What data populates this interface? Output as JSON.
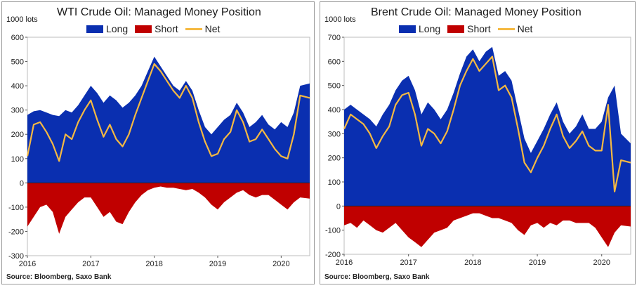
{
  "source_label": "Source: Bloomberg, Saxo Bank",
  "legend": {
    "long": "Long",
    "short": "Short",
    "net": "Net"
  },
  "colors": {
    "long": "#0a2fb0",
    "short": "#c00000",
    "net": "#f5b942"
  },
  "chart_data": [
    {
      "type": "area",
      "title": "WTI Crude Oil: Managed Money Position",
      "ylabel": "1000 lots",
      "xlabel": "",
      "ylim": [
        -300,
        600
      ],
      "yticks": [
        -300,
        -200,
        -100,
        0,
        100,
        200,
        300,
        400,
        500,
        600
      ],
      "xlim": [
        2016.0,
        2020.45
      ],
      "xticks": [
        2016,
        2017,
        2018,
        2019,
        2020
      ],
      "grid": false,
      "legend_position": "top",
      "series": [
        {
          "name": "Long",
          "type": "area",
          "x": [
            2016.0,
            2016.1,
            2016.2,
            2016.3,
            2016.4,
            2016.5,
            2016.6,
            2016.7,
            2016.8,
            2016.9,
            2017.0,
            2017.1,
            2017.2,
            2017.3,
            2017.4,
            2017.5,
            2017.6,
            2017.7,
            2017.8,
            2017.9,
            2018.0,
            2018.1,
            2018.2,
            2018.3,
            2018.4,
            2018.5,
            2018.6,
            2018.7,
            2018.8,
            2018.9,
            2019.0,
            2019.1,
            2019.2,
            2019.3,
            2019.4,
            2019.5,
            2019.6,
            2019.7,
            2019.8,
            2019.9,
            2020.0,
            2020.1,
            2020.2,
            2020.3,
            2020.45
          ],
          "values": [
            280,
            295,
            300,
            290,
            280,
            275,
            300,
            290,
            320,
            360,
            400,
            370,
            330,
            360,
            340,
            310,
            330,
            360,
            400,
            460,
            520,
            480,
            440,
            400,
            380,
            420,
            380,
            300,
            230,
            200,
            230,
            260,
            280,
            330,
            290,
            230,
            250,
            280,
            240,
            220,
            250,
            230,
            290,
            400,
            410
          ]
        },
        {
          "name": "Short",
          "type": "area",
          "x": [
            2016.0,
            2016.1,
            2016.2,
            2016.3,
            2016.4,
            2016.5,
            2016.6,
            2016.7,
            2016.8,
            2016.9,
            2017.0,
            2017.1,
            2017.2,
            2017.3,
            2017.4,
            2017.5,
            2017.6,
            2017.7,
            2017.8,
            2017.9,
            2018.0,
            2018.1,
            2018.2,
            2018.3,
            2018.4,
            2018.5,
            2018.6,
            2018.7,
            2018.8,
            2018.9,
            2019.0,
            2019.1,
            2019.2,
            2019.3,
            2019.4,
            2019.5,
            2019.6,
            2019.7,
            2019.8,
            2019.9,
            2020.0,
            2020.1,
            2020.2,
            2020.3,
            2020.45
          ],
          "values": [
            -180,
            -140,
            -100,
            -90,
            -120,
            -210,
            -140,
            -110,
            -80,
            -60,
            -60,
            -100,
            -140,
            -120,
            -160,
            -170,
            -120,
            -80,
            -50,
            -30,
            -20,
            -15,
            -20,
            -20,
            -25,
            -30,
            -25,
            -40,
            -60,
            -90,
            -110,
            -80,
            -60,
            -40,
            -30,
            -50,
            -60,
            -50,
            -50,
            -70,
            -90,
            -110,
            -80,
            -60,
            -65
          ]
        },
        {
          "name": "Net",
          "type": "line",
          "x": [
            2016.0,
            2016.1,
            2016.2,
            2016.3,
            2016.4,
            2016.5,
            2016.6,
            2016.7,
            2016.8,
            2016.9,
            2017.0,
            2017.1,
            2017.2,
            2017.3,
            2017.4,
            2017.5,
            2017.6,
            2017.7,
            2017.8,
            2017.9,
            2018.0,
            2018.1,
            2018.2,
            2018.3,
            2018.4,
            2018.5,
            2018.6,
            2018.7,
            2018.8,
            2018.9,
            2019.0,
            2019.1,
            2019.2,
            2019.3,
            2019.4,
            2019.5,
            2019.6,
            2019.7,
            2019.8,
            2019.9,
            2020.0,
            2020.1,
            2020.2,
            2020.3,
            2020.45
          ],
          "values": [
            110,
            240,
            250,
            210,
            160,
            90,
            200,
            180,
            250,
            300,
            340,
            260,
            190,
            240,
            180,
            150,
            200,
            280,
            350,
            420,
            490,
            460,
            420,
            380,
            350,
            400,
            350,
            250,
            170,
            110,
            120,
            180,
            210,
            300,
            250,
            170,
            180,
            220,
            180,
            140,
            110,
            100,
            200,
            360,
            350
          ]
        }
      ]
    },
    {
      "type": "area",
      "title": "Brent Crude Oil: Managed Money Position",
      "ylabel": "1000 lots",
      "xlabel": "",
      "ylim": [
        -200,
        700
      ],
      "yticks": [
        -200,
        -100,
        0,
        100,
        200,
        300,
        400,
        500,
        600,
        700
      ],
      "xlim": [
        2016.0,
        2020.45
      ],
      "xticks": [
        2016,
        2017,
        2018,
        2019,
        2020
      ],
      "grid": false,
      "legend_position": "top",
      "series": [
        {
          "name": "Long",
          "type": "area",
          "x": [
            2016.0,
            2016.1,
            2016.2,
            2016.3,
            2016.4,
            2016.5,
            2016.6,
            2016.7,
            2016.8,
            2016.9,
            2017.0,
            2017.1,
            2017.2,
            2017.3,
            2017.4,
            2017.5,
            2017.6,
            2017.7,
            2017.8,
            2017.9,
            2018.0,
            2018.1,
            2018.2,
            2018.3,
            2018.4,
            2018.5,
            2018.6,
            2018.7,
            2018.8,
            2018.9,
            2019.0,
            2019.1,
            2019.2,
            2019.3,
            2019.4,
            2019.5,
            2019.6,
            2019.7,
            2019.8,
            2019.9,
            2020.0,
            2020.1,
            2020.2,
            2020.3,
            2020.45
          ],
          "values": [
            400,
            420,
            400,
            380,
            360,
            330,
            380,
            420,
            480,
            520,
            540,
            480,
            380,
            430,
            400,
            360,
            400,
            470,
            550,
            620,
            650,
            600,
            640,
            660,
            540,
            560,
            520,
            400,
            280,
            220,
            270,
            320,
            380,
            430,
            350,
            300,
            330,
            380,
            320,
            320,
            350,
            450,
            500,
            300,
            260
          ]
        },
        {
          "name": "Short",
          "type": "area",
          "x": [
            2016.0,
            2016.1,
            2016.2,
            2016.3,
            2016.4,
            2016.5,
            2016.6,
            2016.7,
            2016.8,
            2016.9,
            2017.0,
            2017.1,
            2017.2,
            2017.3,
            2017.4,
            2017.5,
            2017.6,
            2017.7,
            2017.8,
            2017.9,
            2018.0,
            2018.1,
            2018.2,
            2018.3,
            2018.4,
            2018.5,
            2018.6,
            2018.7,
            2018.8,
            2018.9,
            2019.0,
            2019.1,
            2019.2,
            2019.3,
            2019.4,
            2019.5,
            2019.6,
            2019.7,
            2019.8,
            2019.9,
            2020.0,
            2020.1,
            2020.2,
            2020.3,
            2020.45
          ],
          "values": [
            -80,
            -70,
            -90,
            -60,
            -80,
            -100,
            -110,
            -90,
            -70,
            -100,
            -130,
            -150,
            -170,
            -140,
            -110,
            -100,
            -90,
            -60,
            -50,
            -40,
            -30,
            -30,
            -40,
            -50,
            -50,
            -60,
            -70,
            -100,
            -120,
            -80,
            -70,
            -90,
            -70,
            -80,
            -60,
            -60,
            -70,
            -70,
            -70,
            -90,
            -130,
            -170,
            -110,
            -80,
            -85
          ]
        },
        {
          "name": "Net",
          "type": "line",
          "x": [
            2016.0,
            2016.1,
            2016.2,
            2016.3,
            2016.4,
            2016.5,
            2016.6,
            2016.7,
            2016.8,
            2016.9,
            2017.0,
            2017.1,
            2017.2,
            2017.3,
            2017.4,
            2017.5,
            2017.6,
            2017.7,
            2017.8,
            2017.9,
            2018.0,
            2018.1,
            2018.2,
            2018.3,
            2018.4,
            2018.5,
            2018.6,
            2018.7,
            2018.8,
            2018.9,
            2019.0,
            2019.1,
            2019.2,
            2019.3,
            2019.4,
            2019.5,
            2019.6,
            2019.7,
            2019.8,
            2019.9,
            2020.0,
            2020.1,
            2020.2,
            2020.3,
            2020.45
          ],
          "values": [
            320,
            380,
            360,
            340,
            300,
            240,
            290,
            330,
            420,
            460,
            470,
            380,
            250,
            320,
            300,
            260,
            310,
            400,
            500,
            560,
            610,
            560,
            590,
            620,
            480,
            500,
            450,
            320,
            180,
            140,
            200,
            250,
            320,
            380,
            290,
            240,
            270,
            310,
            250,
            230,
            230,
            420,
            60,
            190,
            180
          ]
        }
      ]
    }
  ]
}
